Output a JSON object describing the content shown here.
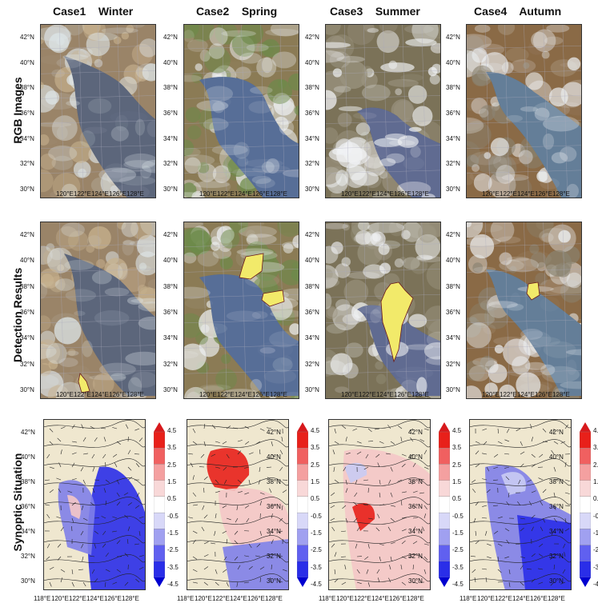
{
  "columns": [
    {
      "case": "Case1",
      "season": "Winter"
    },
    {
      "case": "Case2",
      "season": "Spring"
    },
    {
      "case": "Case3",
      "season": "Summer"
    },
    {
      "case": "Case4",
      "season": "Autumn"
    }
  ],
  "rows": [
    "RGB Images",
    "Detection Results",
    "Synoptic Situation"
  ],
  "lat_labels": [
    "42°N",
    "40°N",
    "38°N",
    "36°N",
    "34°N",
    "32°N",
    "30°N"
  ],
  "lon_labels_sat": [
    "120°E",
    "122°E",
    "124°E",
    "126°E",
    "128°E"
  ],
  "lon_labels_syn": [
    "118°E",
    "120°E",
    "122°E",
    "124°E",
    "126°E",
    "128°E"
  ],
  "colorbar_ticks": [
    "4.5",
    "3.5",
    "2.5",
    "1.5",
    "0.5",
    "-0.5",
    "-1.5",
    "-2.5",
    "-3.5",
    "-4.5"
  ],
  "colors": {
    "land": "#efe7cf",
    "warm_strong": "#e8201a",
    "warm_light": "#f4c6c6",
    "cool_light": "#c9cbf3",
    "cool_mid": "#7f7fe8",
    "cool_strong": "#2a2ee8",
    "fog_detect": "#f2ea6a"
  }
}
